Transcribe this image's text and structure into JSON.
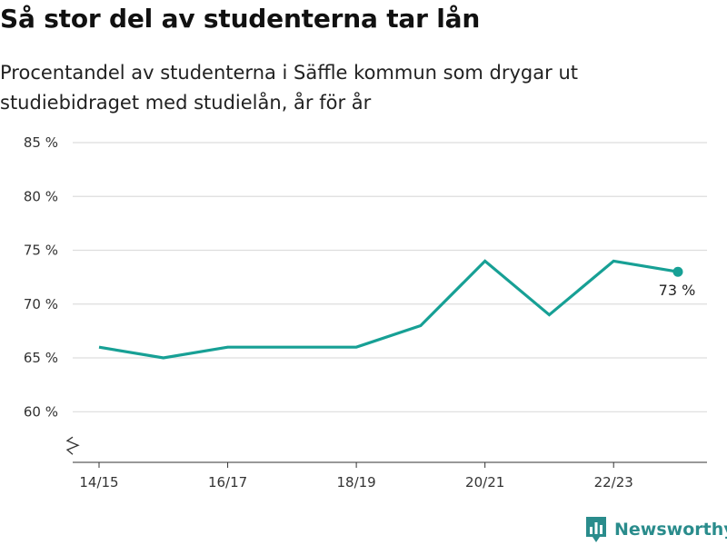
{
  "title": "Så stor del av studenterna tar lån",
  "subtitle": "Procentandel av studenterna i Säffle kommun som drygar ut studiebidraget med studielån, år för år",
  "brand": {
    "name": "Newsworthy",
    "icon": "newsworthy-logo-icon"
  },
  "colors": {
    "line": "#17a095",
    "grid": "#dddddd",
    "axis": "#333333",
    "brand": "#2a8c8c"
  },
  "chart_data": {
    "type": "line",
    "title": "Så stor del av studenterna tar lån",
    "subtitle": "Procentandel av studenterna i Säffle kommun som drygar ut studiebidraget med studielån, år för år",
    "x": [
      "14/15",
      "15/16",
      "16/17",
      "17/18",
      "18/19",
      "19/20",
      "20/21",
      "21/22",
      "22/23",
      "23/24"
    ],
    "x_tick_labels": [
      "14/15",
      "16/17",
      "18/19",
      "20/21",
      "22/23"
    ],
    "series": [
      {
        "values": [
          66,
          65,
          66,
          66,
          66,
          68,
          74,
          69,
          74,
          73
        ]
      }
    ],
    "y_ticks": [
      60,
      65,
      70,
      75,
      80,
      85
    ],
    "y_tick_labels": [
      "60 %",
      "65 %",
      "70 %",
      "75 %",
      "80 %",
      "85 %"
    ],
    "ylim": [
      55.3,
      85
    ],
    "y_axis_break": true,
    "end_label": "73 %",
    "grid": true,
    "legend": "none"
  }
}
